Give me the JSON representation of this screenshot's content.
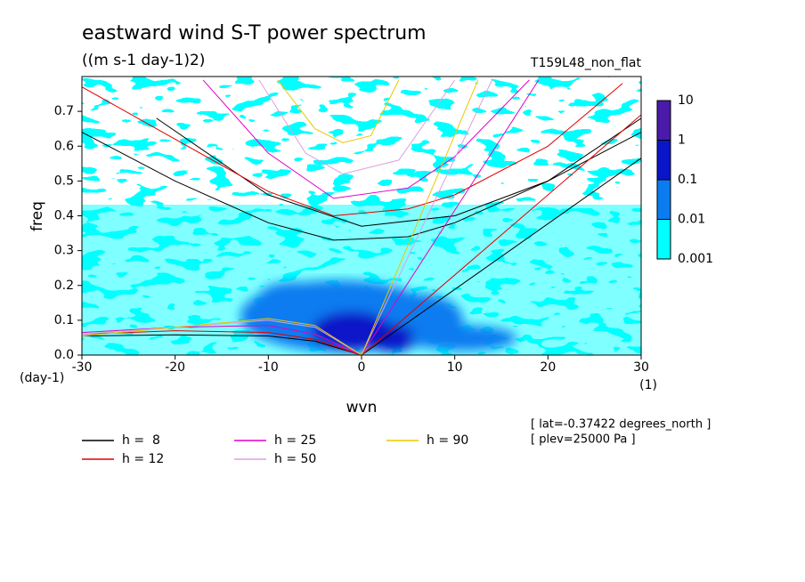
{
  "chart_data": {
    "type": "contour-spectrum",
    "title": "eastward wind S-T power spectrum",
    "subtitle": "((m s-1 day-1)2)",
    "run_label": "T159L48_non_flat",
    "x_label": "wvn",
    "y_label": "freq",
    "x_unit": "(1)",
    "y_unit": "(day-1)",
    "xlim": [
      -30,
      30
    ],
    "ylim": [
      0,
      0.8
    ],
    "xticks": [
      -30,
      -20,
      -10,
      0,
      10,
      20,
      30
    ],
    "yticks": [
      {
        "value": 0,
        "label": "0.0"
      },
      0.1,
      0.2,
      0.3,
      0.4,
      0.5,
      0.6,
      0.7
    ],
    "colorbar": {
      "levels": [
        0.001,
        0.01,
        0.1,
        1,
        10
      ],
      "colors": [
        "#00ffff",
        "#0a7cf0",
        "#0a14c8",
        "#4a1aa8"
      ]
    },
    "annotations": [
      "[ lat=-0.37422 degrees_north ]",
      "[ plev=25000 Pa ]"
    ],
    "series": [
      {
        "name": "h =  8",
        "color": "#000000",
        "branches": [
          {
            "x": [
              0,
              30
            ],
            "values": [
              0,
              0.566
            ]
          },
          {
            "x": [
              -30,
              -20,
              -10,
              -3,
              5,
              10,
              20,
              30
            ],
            "values": [
              0.64,
              0.5,
              0.38,
              0.33,
              0.34,
              0.38,
              0.5,
              0.64
            ]
          },
          {
            "x": [
              -22,
              -10,
              0,
              10,
              20,
              30
            ],
            "values": [
              0.68,
              0.46,
              0.37,
              0.4,
              0.5,
              0.68
            ]
          },
          {
            "x": [
              -30,
              -20,
              -10,
              -5,
              0
            ],
            "values": [
              0.055,
              0.058,
              0.055,
              0.04,
              0
            ]
          }
        ]
      },
      {
        "name": "h = 12",
        "color": "#e00000",
        "branches": [
          {
            "x": [
              0,
              30
            ],
            "values": [
              0,
              0.69
            ]
          },
          {
            "x": [
              -30,
              -20,
              -10,
              -3,
              5,
              10,
              20,
              28
            ],
            "values": [
              0.77,
              0.62,
              0.47,
              0.4,
              0.42,
              0.46,
              0.6,
              0.78
            ]
          },
          {
            "x": [
              -30,
              -20,
              -10,
              -5,
              0
            ],
            "values": [
              0.06,
              0.07,
              0.065,
              0.045,
              0
            ]
          }
        ]
      },
      {
        "name": "h = 25",
        "color": "#e000c8",
        "branches": [
          {
            "x": [
              0,
              19
            ],
            "values": [
              0,
              0.79
            ]
          },
          {
            "x": [
              -17,
              -10,
              -3,
              5,
              10,
              18
            ],
            "values": [
              0.79,
              0.58,
              0.45,
              0.48,
              0.57,
              0.79
            ]
          },
          {
            "x": [
              -30,
              -20,
              -10,
              -5,
              0
            ],
            "values": [
              0.065,
              0.08,
              0.085,
              0.06,
              0
            ]
          }
        ]
      },
      {
        "name": "h = 50",
        "color": "#dda0dd",
        "branches": [
          {
            "x": [
              0,
              14
            ],
            "values": [
              0,
              0.79
            ]
          },
          {
            "x": [
              -11,
              -6,
              -2,
              4,
              10
            ],
            "values": [
              0.79,
              0.58,
              0.52,
              0.56,
              0.79
            ]
          },
          {
            "x": [
              -30,
              -20,
              -10,
              -5,
              0
            ],
            "values": [
              0.06,
              0.08,
              0.1,
              0.08,
              0
            ]
          }
        ]
      },
      {
        "name": "h = 90",
        "color": "#e8c800",
        "branches": [
          {
            "x": [
              0,
              12.5
            ],
            "values": [
              0,
              0.79
            ]
          },
          {
            "x": [
              -9,
              -5,
              -2,
              1,
              4
            ],
            "values": [
              0.79,
              0.65,
              0.61,
              0.63,
              0.79
            ]
          },
          {
            "x": [
              -30,
              -20,
              -10,
              -5,
              0
            ],
            "values": [
              0.055,
              0.08,
              0.105,
              0.085,
              0
            ]
          }
        ]
      }
    ]
  }
}
